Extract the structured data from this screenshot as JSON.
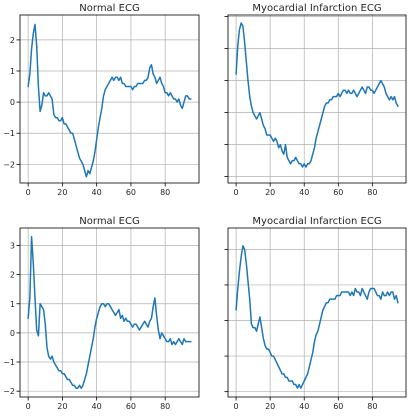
{
  "style": {
    "line_color": "#1f77b4",
    "grid": true
  },
  "chart_data": [
    {
      "type": "line",
      "title": "Normal ECG",
      "xlim": [
        -4.75,
        99.75
      ],
      "ylim": [
        -2.6,
        2.8
      ],
      "xticks": [
        0,
        20,
        40,
        60,
        80
      ],
      "yticks": [
        -2,
        -1,
        0,
        1,
        2
      ],
      "y": [
        0.5,
        0.9,
        1.7,
        2.2,
        2.5,
        1.8,
        0.5,
        -0.3,
        -0.1,
        0.3,
        0.2,
        0.2,
        0.3,
        0.2,
        0.1,
        -0.4,
        -0.5,
        -0.5,
        -0.6,
        -0.6,
        -0.5,
        -0.7,
        -0.7,
        -0.8,
        -0.9,
        -1.0,
        -1.0,
        -1.2,
        -1.4,
        -1.6,
        -1.8,
        -1.9,
        -2.0,
        -2.2,
        -2.4,
        -2.2,
        -2.3,
        -2.1,
        -1.9,
        -1.6,
        -1.2,
        -0.8,
        -0.5,
        -0.2,
        0.2,
        0.4,
        0.5,
        0.6,
        0.7,
        0.8,
        0.7,
        0.8,
        0.8,
        0.7,
        0.8,
        0.6,
        0.6,
        0.5,
        0.5,
        0.5,
        0.5,
        0.4,
        0.5,
        0.5,
        0.6,
        0.6,
        0.6,
        0.6,
        0.7,
        0.7,
        0.8,
        1.1,
        1.2,
        0.9,
        0.8,
        0.6,
        0.7,
        0.8,
        0.6,
        0.5,
        0.3,
        0.3,
        0.2,
        0.3,
        0.2,
        0.1,
        0.1,
        0.0,
        0.1,
        -0.1,
        -0.2,
        0.0,
        0.2,
        0.2,
        0.1,
        0.1
      ]
    },
    {
      "type": "line",
      "title": "Myocardial Infarction ECG",
      "xlim": [
        -4.75,
        99.75
      ],
      "ylim": [
        -2.2,
        3.05
      ],
      "xticks": [
        0,
        20,
        40,
        60,
        80
      ],
      "yticks": [
        -2,
        -1,
        0,
        1,
        2,
        3
      ],
      "y": [
        1.2,
        2.1,
        2.6,
        2.8,
        2.7,
        2.2,
        1.6,
        1.0,
        0.5,
        0.2,
        0.0,
        -0.1,
        -0.2,
        -0.1,
        0.0,
        -0.2,
        -0.4,
        -0.5,
        -0.7,
        -0.7,
        -0.7,
        -0.8,
        -0.9,
        -0.8,
        -0.9,
        -1.1,
        -1.0,
        -1.2,
        -1.3,
        -1.0,
        -1.4,
        -1.5,
        -1.6,
        -1.5,
        -1.5,
        -1.4,
        -1.5,
        -1.6,
        -1.6,
        -1.7,
        -1.6,
        -1.7,
        -1.6,
        -1.6,
        -1.5,
        -1.3,
        -1.1,
        -0.8,
        -0.6,
        -0.4,
        -0.2,
        0.0,
        0.2,
        0.3,
        0.3,
        0.4,
        0.4,
        0.5,
        0.5,
        0.5,
        0.6,
        0.5,
        0.6,
        0.7,
        0.7,
        0.6,
        0.7,
        0.6,
        0.6,
        0.7,
        0.6,
        0.5,
        0.6,
        0.7,
        0.8,
        0.7,
        0.6,
        0.8,
        0.8,
        0.7,
        0.7,
        0.6,
        0.7,
        0.8,
        0.9,
        1.0,
        0.9,
        0.8,
        0.6,
        0.5,
        0.4,
        0.5,
        0.4,
        0.5,
        0.3,
        0.2
      ]
    },
    {
      "type": "line",
      "title": "Normal ECG",
      "xlim": [
        -4.75,
        99.75
      ],
      "ylim": [
        -2.2,
        3.6
      ],
      "xticks": [
        0,
        20,
        40,
        60,
        80
      ],
      "yticks": [
        -2,
        -1,
        0,
        1,
        2,
        3
      ],
      "y": [
        0.5,
        1.2,
        3.3,
        2.4,
        1.2,
        0.1,
        -0.1,
        1.0,
        0.9,
        0.8,
        0.3,
        -0.5,
        -0.8,
        -0.9,
        -0.8,
        -1.0,
        -1.1,
        -1.2,
        -1.3,
        -1.3,
        -1.4,
        -1.4,
        -1.5,
        -1.6,
        -1.6,
        -1.7,
        -1.8,
        -1.8,
        -1.9,
        -1.9,
        -1.8,
        -1.9,
        -1.8,
        -1.6,
        -1.4,
        -1.1,
        -0.8,
        -0.5,
        -0.2,
        0.2,
        0.5,
        0.7,
        0.9,
        1.0,
        1.0,
        0.9,
        1.0,
        1.0,
        0.9,
        0.8,
        0.7,
        0.6,
        0.7,
        0.8,
        0.5,
        0.6,
        0.4,
        0.5,
        0.4,
        0.4,
        0.3,
        0.2,
        0.3,
        0.3,
        0.2,
        0.1,
        0.2,
        0.3,
        0.4,
        0.3,
        0.2,
        0.4,
        0.5,
        0.9,
        1.2,
        0.6,
        0.1,
        -0.2,
        0.0,
        -0.1,
        -0.2,
        -0.3,
        -0.3,
        -0.2,
        -0.4,
        -0.3,
        -0.4,
        -0.3,
        -0.2,
        -0.3,
        -0.4,
        -0.2,
        -0.3,
        -0.3,
        -0.3,
        -0.3
      ]
    },
    {
      "type": "line",
      "title": "Myocardial Infarction ECG",
      "xlim": [
        -4.75,
        99.75
      ],
      "ylim": [
        -2.15,
        2.6
      ],
      "xticks": [
        0,
        20,
        40,
        60,
        80
      ],
      "yticks": [
        -2,
        -1,
        0,
        1,
        2
      ],
      "y": [
        0.3,
        0.9,
        1.4,
        1.8,
        2.1,
        2.0,
        1.6,
        1.1,
        0.6,
        -0.1,
        -0.2,
        -0.2,
        -0.3,
        -0.1,
        0.1,
        -0.2,
        -0.5,
        -0.7,
        -0.8,
        -0.8,
        -0.9,
        -1.0,
        -1.0,
        -1.1,
        -1.2,
        -1.3,
        -1.4,
        -1.5,
        -1.5,
        -1.6,
        -1.6,
        -1.7,
        -1.7,
        -1.7,
        -1.8,
        -1.8,
        -1.9,
        -1.8,
        -1.9,
        -1.8,
        -1.7,
        -1.6,
        -1.5,
        -1.3,
        -1.1,
        -0.9,
        -0.6,
        -0.4,
        -0.3,
        -0.1,
        0.1,
        0.3,
        0.4,
        0.5,
        0.5,
        0.6,
        0.6,
        0.6,
        0.6,
        0.7,
        0.7,
        0.7,
        0.8,
        0.8,
        0.8,
        0.8,
        0.8,
        0.7,
        0.8,
        0.7,
        0.9,
        0.8,
        0.8,
        0.7,
        0.9,
        0.8,
        0.7,
        0.6,
        0.8,
        0.9,
        0.9,
        0.9,
        0.8,
        0.7,
        0.7,
        0.6,
        0.8,
        0.7,
        0.7,
        0.8,
        0.7,
        0.8,
        0.8,
        0.6,
        0.7,
        0.5
      ]
    }
  ]
}
